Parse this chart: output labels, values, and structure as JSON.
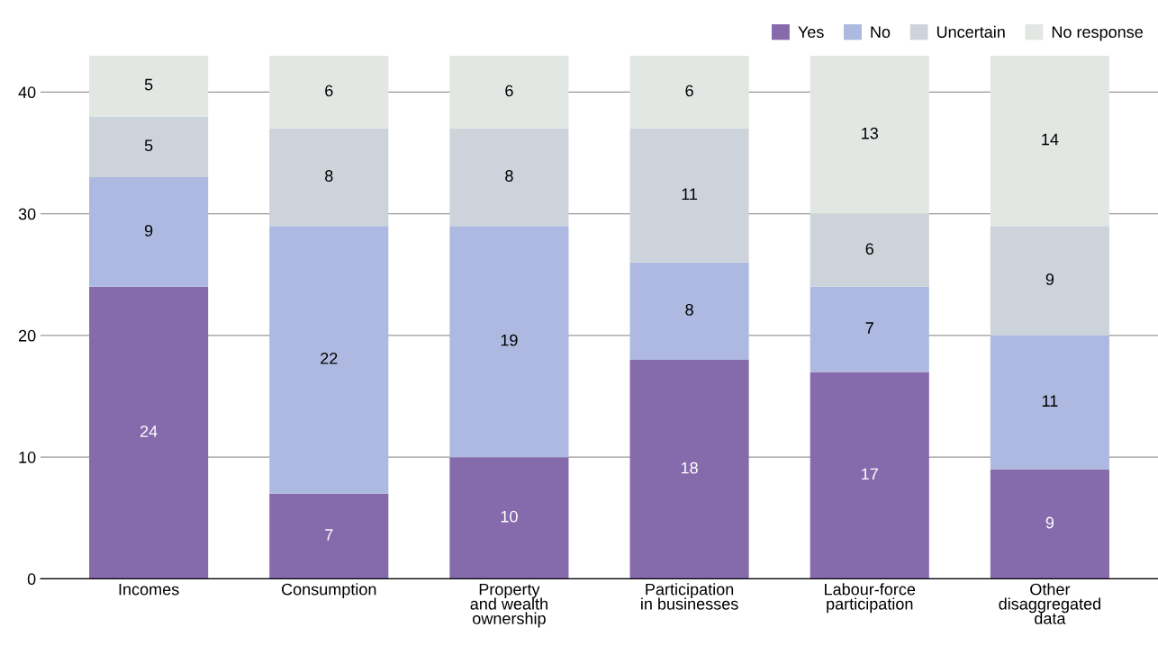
{
  "chart_data": {
    "type": "bar",
    "stacked": true,
    "categories": [
      "Incomes",
      "Consumption",
      "Property\nand wealth\nownership",
      "Participation\nin businesses",
      "Labour-force\nparticipation",
      "Other\ndisaggregated\ndata"
    ],
    "series": [
      {
        "name": "Yes",
        "color": "#866bac",
        "values": [
          24,
          7,
          10,
          18,
          17,
          9
        ]
      },
      {
        "name": "No",
        "color": "#adb9e0",
        "values": [
          9,
          22,
          19,
          8,
          7,
          11
        ]
      },
      {
        "name": "Uncertain",
        "color": "#ccd3da",
        "values": [
          5,
          8,
          8,
          11,
          6,
          9
        ]
      },
      {
        "name": "No response",
        "color": "#e3e7e4",
        "values": [
          5,
          6,
          6,
          6,
          13,
          14
        ]
      }
    ],
    "ylim": [
      0,
      43
    ],
    "yticks": [
      0,
      10,
      20,
      30,
      40
    ],
    "grid": "y",
    "legend": "top right",
    "data_labels": true
  }
}
